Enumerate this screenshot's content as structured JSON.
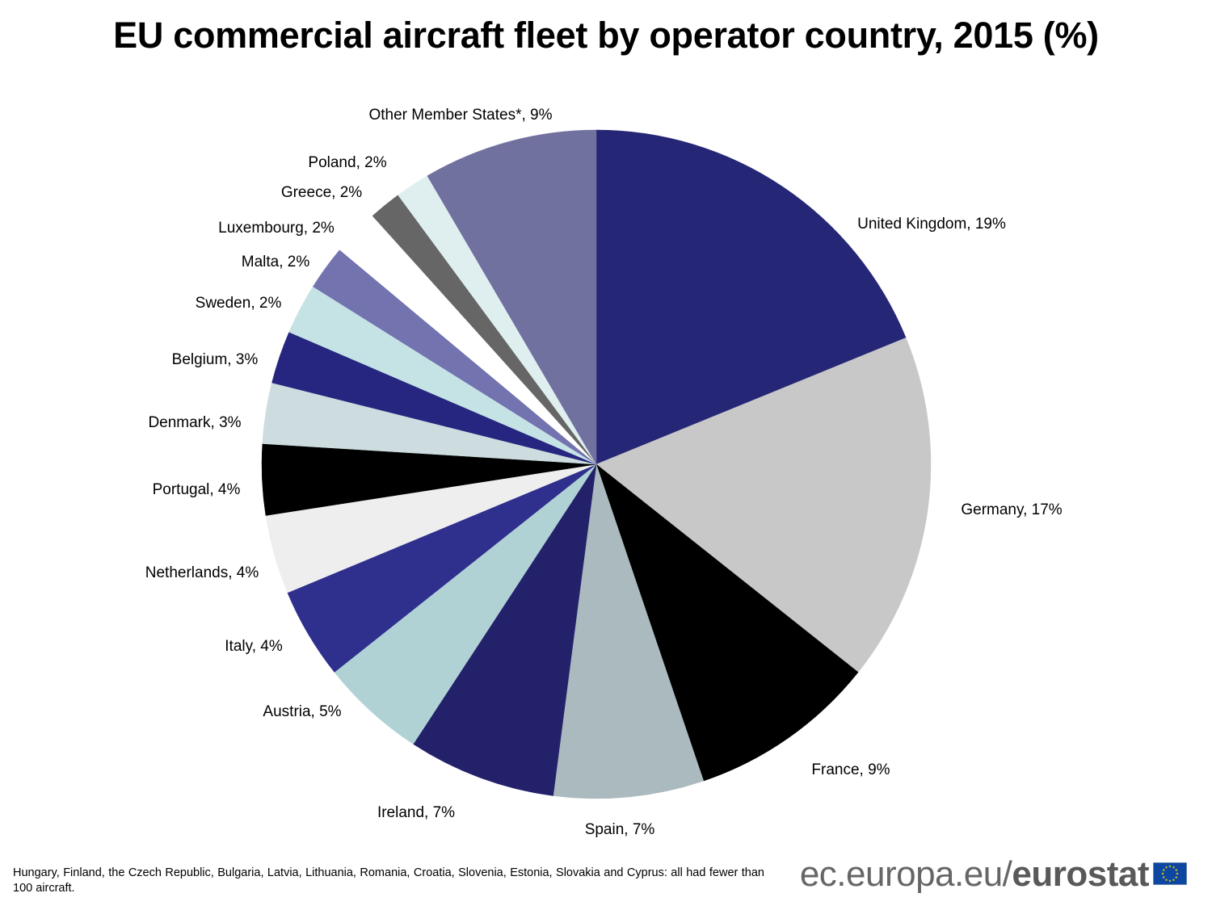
{
  "title": "EU commercial aircraft fleet by operator country, 2015 (%)",
  "chart_data": {
    "type": "pie",
    "title": "EU commercial aircraft fleet by operator country, 2015 (%)",
    "start_angle_deg": 0,
    "direction": "clockwise",
    "legend": "none",
    "slices": [
      {
        "label": "United Kingdom, 19%",
        "name": "United Kingdom",
        "value": 19.2,
        "color": "#262676"
      },
      {
        "label": "Germany, 17%",
        "name": "Germany",
        "value": 17.2,
        "color": "#c8c8c8"
      },
      {
        "label": "France, 9%",
        "name": "France",
        "value": 9.3,
        "color": "#000000"
      },
      {
        "label": "Spain, 7%",
        "name": "Spain",
        "value": 7.4,
        "color": "#abbabe"
      },
      {
        "label": "Ireland, 7%",
        "name": "Ireland",
        "value": 7.3,
        "color": "#24216b"
      },
      {
        "label": "Austria, 5%",
        "name": "Austria",
        "value": 5.2,
        "color": "#b0d2d5"
      },
      {
        "label": "Italy, 4%",
        "name": "Italy",
        "value": 4.5,
        "color": "#2f2f8e"
      },
      {
        "label": "Netherlands, 4%",
        "name": "Netherlands",
        "value": 3.9,
        "color": "#eeeeee"
      },
      {
        "label": "Portugal, 4%",
        "name": "Portugal",
        "value": 3.5,
        "color": "#000000"
      },
      {
        "label": "Denmark, 3%",
        "name": "Denmark",
        "value": 3.0,
        "color": "#cddcde"
      },
      {
        "label": "Belgium, 3%",
        "name": "Belgium",
        "value": 2.6,
        "color": "#262680"
      },
      {
        "label": "Sweden, 2%",
        "name": "Sweden",
        "value": 2.5,
        "color": "#c5e3e5"
      },
      {
        "label": "Malta, 2%",
        "name": "Malta",
        "value": 2.2,
        "color": "#7373b0"
      },
      {
        "label": "Luxembourg, 2%",
        "name": "Luxembourg",
        "value": 2.3,
        "color": "#ffffff"
      },
      {
        "label": "Greece, 2%",
        "name": "Greece",
        "value": 1.6,
        "color": "#666666"
      },
      {
        "label": "Poland, 2%",
        "name": "Poland",
        "value": 1.7,
        "color": "#dfeff0"
      },
      {
        "label": "Other Member States*, 9%",
        "name": "Other Member States*",
        "value": 8.6,
        "color": "#7171a0"
      }
    ]
  },
  "footnote": "Hungary, Finland, the Czech Republic, Bulgaria, Latvia, Lithuania, Romania, Croatia, Slovenia, Estonia, Slovakia and Cyprus: all had fewer than 100 aircraft.",
  "brand": {
    "prefix": "ec.europa.eu/",
    "name": "eurostat",
    "flag_color": "#0e47a1",
    "star_color": "#ffdd00"
  }
}
